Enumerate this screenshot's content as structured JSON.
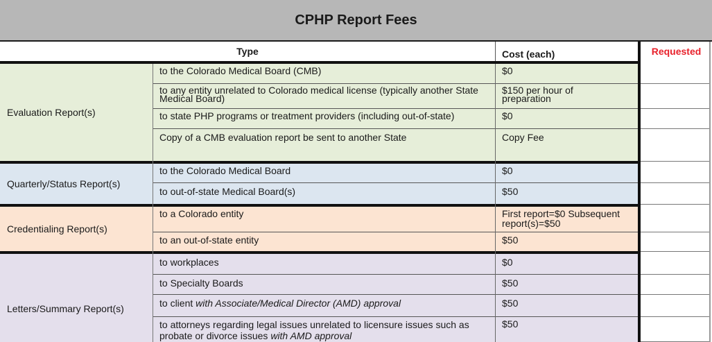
{
  "title": "CPHP Report Fees",
  "headers": {
    "type": "Type",
    "cost": "Cost (each)",
    "requested": "Requested"
  },
  "colors": {
    "requested_header": "#e8212b",
    "evaluation": "#e6eed9",
    "quarterly": "#dce6f0",
    "credentialing": "#fce4d2",
    "letters": "#e4dfec"
  },
  "groups": [
    {
      "name": "Evaluation Report(s)",
      "rows": [
        {
          "desc": "to the Colorado Medical Board (CMB)",
          "cost": "$0"
        },
        {
          "desc": "to any entity unrelated to Colorado medical license (typically another State Medical Board)",
          "cost": "$150 per hour of preparation"
        },
        {
          "desc": "to state PHP programs or treatment providers (including out-of-state)",
          "cost": "$0"
        },
        {
          "desc": "Copy of a CMB evaluation report be sent to another State",
          "cost": "Copy Fee"
        }
      ]
    },
    {
      "name": "Quarterly/Status Report(s)",
      "rows": [
        {
          "desc": "to the Colorado Medical Board",
          "cost": "$0"
        },
        {
          "desc": "to out-of-state Medical Board(s)",
          "cost": "$50"
        }
      ]
    },
    {
      "name": "Credentialing Report(s)",
      "rows": [
        {
          "desc": "to a Colorado entity",
          "cost": "First report=$0 Subsequent report(s)=$50"
        },
        {
          "desc": "to an out-of-state entity",
          "cost": "$50"
        }
      ]
    },
    {
      "name": "Letters/Summary Report(s)",
      "rows": [
        {
          "desc": "to workplaces",
          "cost": "$0"
        },
        {
          "desc": "to Specialty Boards",
          "cost": "$50"
        },
        {
          "desc": "to client",
          "desc_italic": "with Associate/Medical Director (AMD) approval",
          "cost": "$50"
        },
        {
          "desc": "to attorneys regarding legal issues unrelated to licensure issues such as probate or divorce issues",
          "desc_italic": "with AMD approval",
          "cost": "$50"
        }
      ]
    }
  ]
}
